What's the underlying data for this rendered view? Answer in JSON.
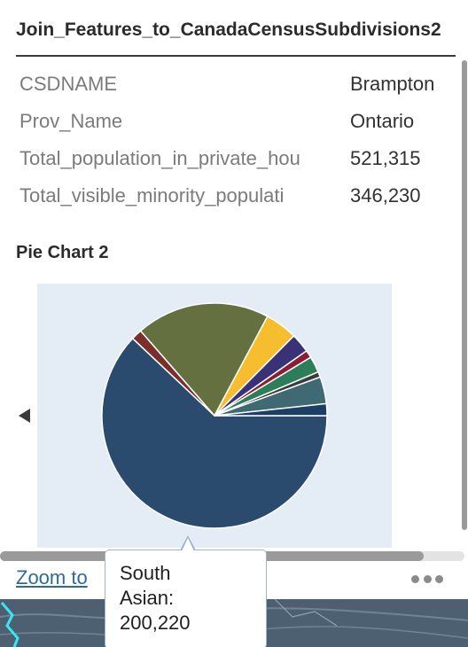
{
  "popup": {
    "title": "Join_Features_to_CanadaCensusSubdivisions2",
    "attributes": [
      {
        "key": "CSDNAME",
        "value": "Brampton"
      },
      {
        "key": "Prov_Name",
        "value": "Ontario"
      },
      {
        "key": "Total_population_in_private_hou",
        "value": "521,315"
      },
      {
        "key": "Total_visible_minority_populati",
        "value": "346,230"
      }
    ],
    "chart_title": "Pie Chart 2",
    "zoom_label": "Zoom to",
    "more_icon": "more-horizontal-icon",
    "prev_icon": "triangle-left-icon"
  },
  "tooltip": {
    "line1": "South",
    "line2": "Asian:",
    "line3": "200,220"
  },
  "chart_data": {
    "type": "pie",
    "title": "Pie Chart 2",
    "slices": [
      {
        "label": "South Asian",
        "value": 200220,
        "color": "#2b4b6e"
      },
      {
        "value": 5000,
        "color": "#7a2f2d"
      },
      {
        "value": 62000,
        "color": "#64703f"
      },
      {
        "value": 15000,
        "color": "#f6be2f"
      },
      {
        "value": 9000,
        "color": "#3a3277"
      },
      {
        "value": 3500,
        "color": "#8a1c33"
      },
      {
        "value": 7500,
        "color": "#2c7e58"
      },
      {
        "value": 2500,
        "color": "#3b3b3b"
      },
      {
        "value": 12500,
        "color": "#3f6a74"
      },
      {
        "value": 5500,
        "color": "#1c3f66"
      }
    ]
  }
}
